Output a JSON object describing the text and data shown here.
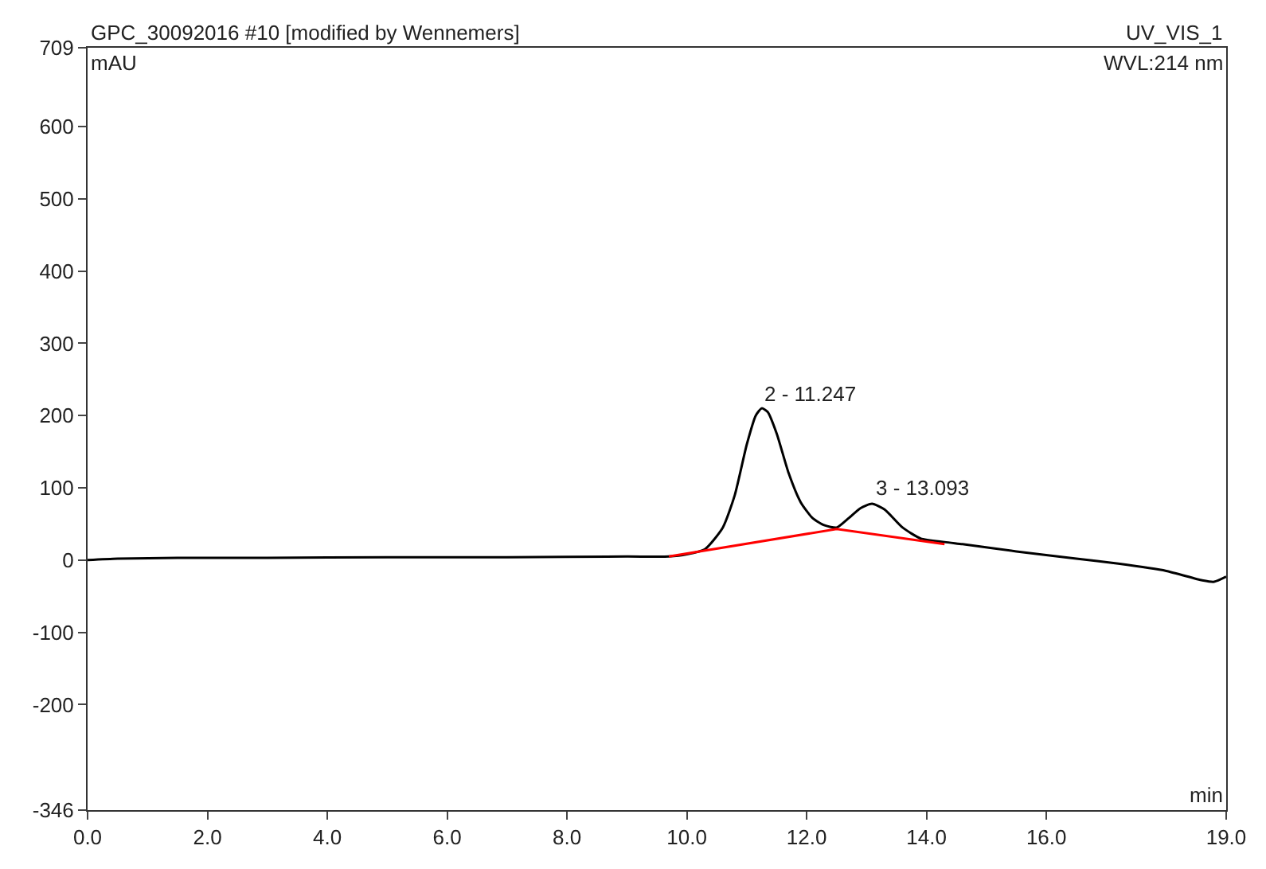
{
  "chart_data": {
    "type": "line",
    "title": "GPC_30092016 #10 [modified by Wennemers]",
    "subtitle": "UV_VIS_1",
    "xlabel": "min",
    "ylabel": "mAU",
    "annotations": [
      "WVL:214 nm",
      {
        "text": "2 - 11.247",
        "x": 11.247,
        "y": 210
      },
      {
        "text": "3 - 13.093",
        "x": 13.093,
        "y": 78
      }
    ],
    "series": [
      {
        "color": "#000000",
        "x": [
          0,
          0.5,
          1.5,
          3,
          5,
          7,
          9,
          9.7,
          10.0,
          10.3,
          10.6,
          10.8,
          11.0,
          11.15,
          11.25,
          11.35,
          11.5,
          11.7,
          11.9,
          12.1,
          12.3,
          12.5,
          12.7,
          12.9,
          13.09,
          13.3,
          13.6,
          13.9,
          14.3,
          14.6,
          15.5,
          16.5,
          17.2,
          18.0,
          18.6,
          18.8,
          19.0
        ],
        "values": [
          0,
          2,
          3,
          3,
          4,
          4,
          5,
          5,
          8,
          15,
          45,
          90,
          160,
          200,
          210,
          205,
          175,
          120,
          80,
          58,
          48,
          45,
          58,
          72,
          78,
          70,
          45,
          30,
          25,
          22,
          12,
          2,
          -5,
          -15,
          -28,
          -30,
          -23
        ]
      },
      {
        "color": "#ff0000",
        "x": [
          9.7,
          12.5,
          14.3
        ],
        "values": [
          5,
          43,
          22
        ]
      }
    ],
    "xlim": [
      0,
      19
    ],
    "ylim": [
      -346,
      709
    ],
    "xticks": [
      {
        "value": 0,
        "label": "0.0"
      },
      {
        "value": 2,
        "label": "2.0"
      },
      {
        "value": 4,
        "label": "4.0"
      },
      {
        "value": 6,
        "label": "6.0"
      },
      {
        "value": 8,
        "label": "8.0"
      },
      {
        "value": 10,
        "label": "10.0"
      },
      {
        "value": 12,
        "label": "12.0"
      },
      {
        "value": 14,
        "label": "14.0"
      },
      {
        "value": 16,
        "label": "16.0"
      },
      {
        "value": 19,
        "label": "19.0"
      }
    ],
    "yticks": [
      -346,
      -200,
      -100,
      0,
      100,
      200,
      300,
      400,
      500,
      600,
      709
    ],
    "marker": "none",
    "line_style": "solid"
  }
}
